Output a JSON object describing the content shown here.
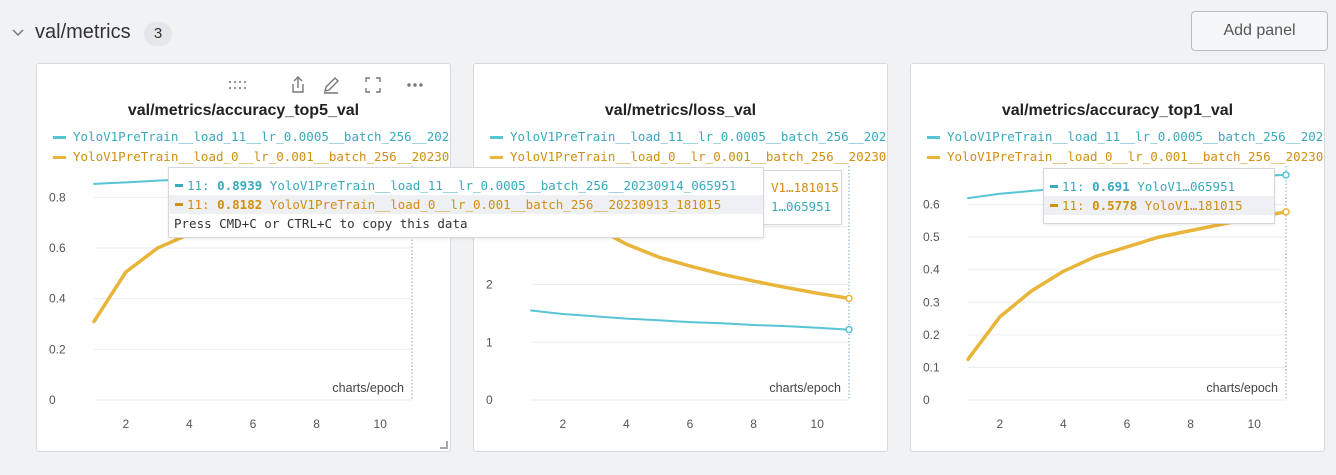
{
  "section": {
    "title": "val/metrics",
    "count": "3",
    "add_panel_label": "Add panel"
  },
  "colors": {
    "run_a": "#57c5d6",
    "run_b": "#e8b53a",
    "run_a_text": "#3aa9bf",
    "run_b_text": "#cf8f0f"
  },
  "legend": [
    {
      "label": "YoloV1PreTrain__load_11__lr_0.0005__batch_256__20230914_065951",
      "color": "#57c5d6"
    },
    {
      "label": "YoloV1PreTrain__load_0__lr_0.001__batch_256__20230913_181015",
      "color": "#e8b53a"
    }
  ],
  "toolbar_icons": [
    "drag-handle-icon",
    "share-icon",
    "edit-icon",
    "fullscreen-icon",
    "more-icon"
  ],
  "panels": [
    {
      "title": "val/metrics/accuracy_top5_val",
      "x_label": "charts/epoch"
    },
    {
      "title": "val/metrics/loss_val",
      "x_label": "charts/epoch"
    },
    {
      "title": "val/metrics/accuracy_top1_val",
      "x_label": "charts/epoch"
    }
  ],
  "tooltip1": {
    "row_a_prefix": "11: ",
    "row_a_value": "0.8939",
    "row_a_name": "YoloV1PreTrain__load_11__lr_0.0005__batch_256__20230914_065951",
    "row_b_prefix": "11: ",
    "row_b_value": "0.8182",
    "row_b_name": "YoloV1PreTrain__load_0__lr_0.001__batch_256__20230913_181015",
    "note": "Press CMD+C or CTRL+C to copy this data"
  },
  "tooltip2": {
    "row_b_tail": "V1…181015",
    "row_a_tail": "1…065951"
  },
  "tooltip3": {
    "row_a_prefix": "11: ",
    "row_a_value": "0.691",
    "row_a_name": "YoloV1…065951",
    "row_b_prefix": "11: ",
    "row_b_value": "0.5778",
    "row_b_name": "YoloV1…181015"
  },
  "chart_data": [
    {
      "type": "line",
      "title": "val/metrics/accuracy_top5_val",
      "xlabel": "charts/epoch",
      "xlim": [
        1,
        11
      ],
      "ylim": [
        0,
        0.9
      ],
      "xticks": [
        2,
        4,
        6,
        8,
        10
      ],
      "yticks": [
        0,
        0.2,
        0.4,
        0.6,
        0.8
      ],
      "series": [
        {
          "name": "YoloV1PreTrain__load_11__lr_0.0005__batch_256__20230914_065951",
          "x": [
            1,
            2,
            3,
            4,
            5,
            6,
            7,
            8,
            9,
            10,
            11
          ],
          "y": [
            0.853,
            0.859,
            0.866,
            0.871,
            0.875,
            0.879,
            0.883,
            0.886,
            0.889,
            0.892,
            0.8939
          ]
        },
        {
          "name": "YoloV1PreTrain__load_0__lr_0.001__batch_256__20230913_181015",
          "x": [
            1,
            2,
            3,
            4,
            5,
            6,
            7,
            8,
            9,
            10,
            11
          ],
          "y": [
            0.31,
            0.505,
            0.6,
            0.655,
            0.7,
            0.735,
            0.76,
            0.78,
            0.795,
            0.808,
            0.8182
          ]
        }
      ]
    },
    {
      "type": "line",
      "title": "val/metrics/loss_val",
      "xlabel": "charts/epoch",
      "xlim": [
        1,
        11
      ],
      "ylim": [
        0,
        3.95
      ],
      "xticks": [
        2,
        4,
        6,
        8,
        10
      ],
      "yticks": [
        0,
        1,
        2,
        3
      ],
      "series": [
        {
          "name": "YoloV1PreTrain__load_11__lr_0.0005__batch_256__20230914_065951",
          "x": [
            1,
            2,
            3,
            4,
            5,
            6,
            7,
            8,
            9,
            10,
            11
          ],
          "y": [
            1.55,
            1.49,
            1.45,
            1.41,
            1.38,
            1.35,
            1.33,
            1.3,
            1.28,
            1.25,
            1.22
          ]
        },
        {
          "name": "YoloV1PreTrain__load_0__lr_0.001__batch_256__20230913_181015",
          "x": [
            1,
            2,
            3,
            4,
            5,
            6,
            7,
            8,
            9,
            10,
            11
          ],
          "y": [
            3.7,
            3.35,
            3.0,
            2.7,
            2.48,
            2.32,
            2.18,
            2.06,
            1.95,
            1.85,
            1.76
          ]
        }
      ]
    },
    {
      "type": "line",
      "title": "val/metrics/accuracy_top1_val",
      "xlabel": "charts/epoch",
      "xlim": [
        1,
        11
      ],
      "ylim": [
        0,
        0.7
      ],
      "xticks": [
        2,
        4,
        6,
        8,
        10
      ],
      "yticks": [
        0,
        0.1,
        0.2,
        0.3,
        0.4,
        0.5,
        0.6
      ],
      "series": [
        {
          "name": "YoloV1PreTrain__load_11__lr_0.0005__batch_256__20230914_065951",
          "x": [
            1,
            2,
            3,
            4,
            5,
            6,
            7,
            8,
            9,
            10,
            11
          ],
          "y": [
            0.62,
            0.633,
            0.642,
            0.65,
            0.657,
            0.664,
            0.671,
            0.677,
            0.682,
            0.687,
            0.691
          ]
        },
        {
          "name": "YoloV1PreTrain__load_0__lr_0.001__batch_256__20230913_181015",
          "x": [
            1,
            2,
            3,
            4,
            5,
            6,
            7,
            8,
            9,
            10,
            11
          ],
          "y": [
            0.125,
            0.255,
            0.335,
            0.395,
            0.44,
            0.47,
            0.5,
            0.52,
            0.54,
            0.56,
            0.5778
          ]
        }
      ]
    }
  ]
}
